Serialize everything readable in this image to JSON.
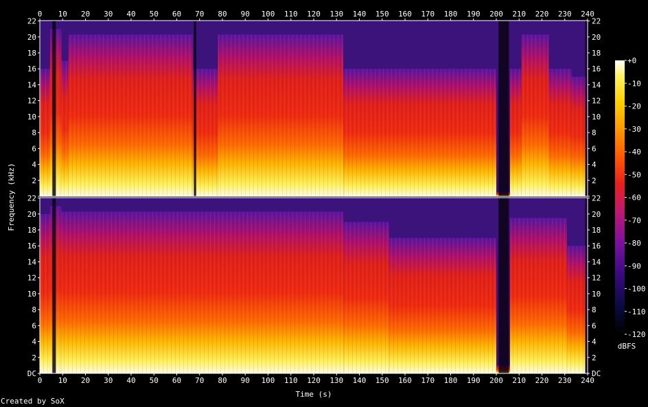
{
  "chart_data": {
    "type": "heatmap",
    "x_axis": {
      "label": "Time (s)",
      "range": [
        0,
        240
      ],
      "ticks": [
        0,
        10,
        20,
        30,
        40,
        50,
        60,
        70,
        80,
        90,
        100,
        110,
        120,
        130,
        140,
        150,
        160,
        170,
        180,
        190,
        200,
        210,
        220,
        230,
        240
      ]
    },
    "y_axis": {
      "label": "Frequency (kHz)",
      "range": [
        0,
        22.05
      ],
      "tick_values": [
        0,
        2,
        4,
        6,
        8,
        10,
        12,
        14,
        16,
        18,
        20,
        22
      ],
      "tick_labels": [
        "DC",
        "2",
        "4",
        "6",
        "8",
        "10",
        "12",
        "14",
        "16",
        "18",
        "20",
        "22"
      ],
      "top_panel_tick_labels": [
        "",
        "2",
        "4",
        "6",
        "8",
        "10",
        "12",
        "14",
        "16",
        "18",
        "20",
        "22"
      ]
    },
    "colorbar": {
      "label": "dBFS",
      "range": [
        -120,
        0
      ],
      "ticks": [
        0,
        -10,
        -20,
        -30,
        -40,
        -50,
        -60,
        -70,
        -80,
        -90,
        -100,
        -110,
        -120
      ],
      "tick_labels": [
        "+0",
        "-10",
        "-20",
        "-30",
        "-40",
        "-50",
        "-60",
        "-70",
        "-80",
        "-90",
        "-100",
        "-110",
        "-120"
      ]
    },
    "channels": [
      {
        "cutoff_segments_khz": [
          {
            "t": [
              0,
              4.5
            ],
            "cutoff": 16
          },
          {
            "t": [
              4.5,
              9.5
            ],
            "cutoff": 21
          },
          {
            "t": [
              9.5,
              12.5
            ],
            "cutoff": 17
          },
          {
            "t": [
              12.5,
              67
            ],
            "cutoff": 20.3
          },
          {
            "t": [
              67,
              78
            ],
            "cutoff": 16
          },
          {
            "t": [
              78,
              133
            ],
            "cutoff": 20.3
          },
          {
            "t": [
              133,
              200
            ],
            "cutoff": 16
          },
          {
            "t": [
              200,
              206
            ],
            "cutoff": 0.5
          },
          {
            "t": [
              206,
              211
            ],
            "cutoff": 16
          },
          {
            "t": [
              211,
              223
            ],
            "cutoff": 20.3
          },
          {
            "t": [
              223,
              233
            ],
            "cutoff": 16
          },
          {
            "t": [
              233,
              239
            ],
            "cutoff": 15
          }
        ],
        "silent_gaps_s": [
          [
            5.5,
            7
          ],
          [
            67.5,
            68.5
          ],
          [
            201,
            205.5
          ],
          [
            239,
            241
          ]
        ]
      },
      {
        "cutoff_segments_khz": [
          {
            "t": [
              0,
              4.5
            ],
            "cutoff": 20
          },
          {
            "t": [
              4.5,
              9.5
            ],
            "cutoff": 21
          },
          {
            "t": [
              9.5,
              133
            ],
            "cutoff": 20.3
          },
          {
            "t": [
              133,
              153
            ],
            "cutoff": 19
          },
          {
            "t": [
              153,
              200
            ],
            "cutoff": 17
          },
          {
            "t": [
              200,
              206
            ],
            "cutoff": 1.0
          },
          {
            "t": [
              206,
              231
            ],
            "cutoff": 19.5
          },
          {
            "t": [
              231,
              239
            ],
            "cutoff": 16
          }
        ],
        "silent_gaps_s": [
          [
            5.5,
            7
          ],
          [
            201,
            205.5
          ],
          [
            239,
            241
          ]
        ]
      }
    ]
  },
  "footer": {
    "credit": "Created by SoX"
  }
}
